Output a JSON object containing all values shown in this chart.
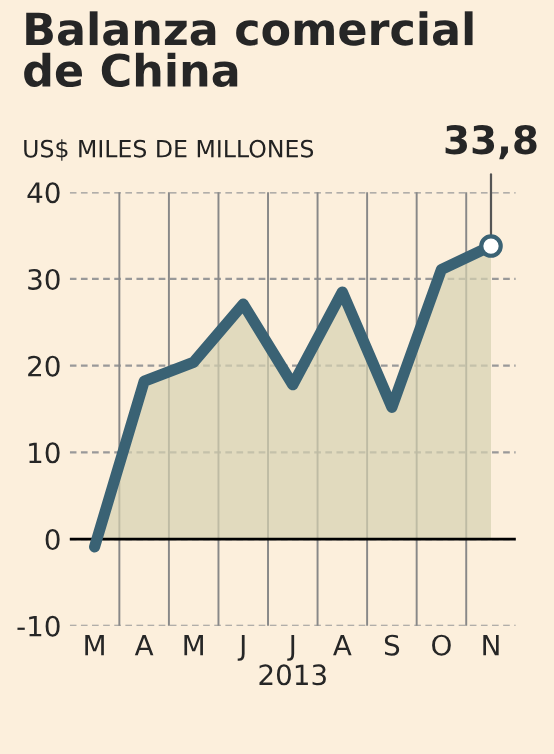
{
  "chart_data": {
    "type": "area",
    "title": "Balanza comercial\nde China",
    "subtitle": "US$ MILES DE MILLONES",
    "xlabel": "2013",
    "categories": [
      "M",
      "A",
      "M",
      "J",
      "J",
      "A",
      "S",
      "O",
      "N"
    ],
    "series": [
      {
        "color": "#3a6274",
        "values": [
          -0.9,
          18.2,
          20.4,
          27.1,
          17.8,
          28.5,
          15.2,
          31.1,
          33.8
        ]
      }
    ],
    "ylim": [
      -10,
      40
    ],
    "yticks": [
      -10,
      0,
      10,
      20,
      30,
      40
    ],
    "grid": true,
    "ref_lines": [
      {
        "axis": "y",
        "value": 0,
        "color": "#000000"
      }
    ],
    "annotations": [
      {
        "text": "33,8",
        "x": "N",
        "y": 33.8
      }
    ]
  }
}
